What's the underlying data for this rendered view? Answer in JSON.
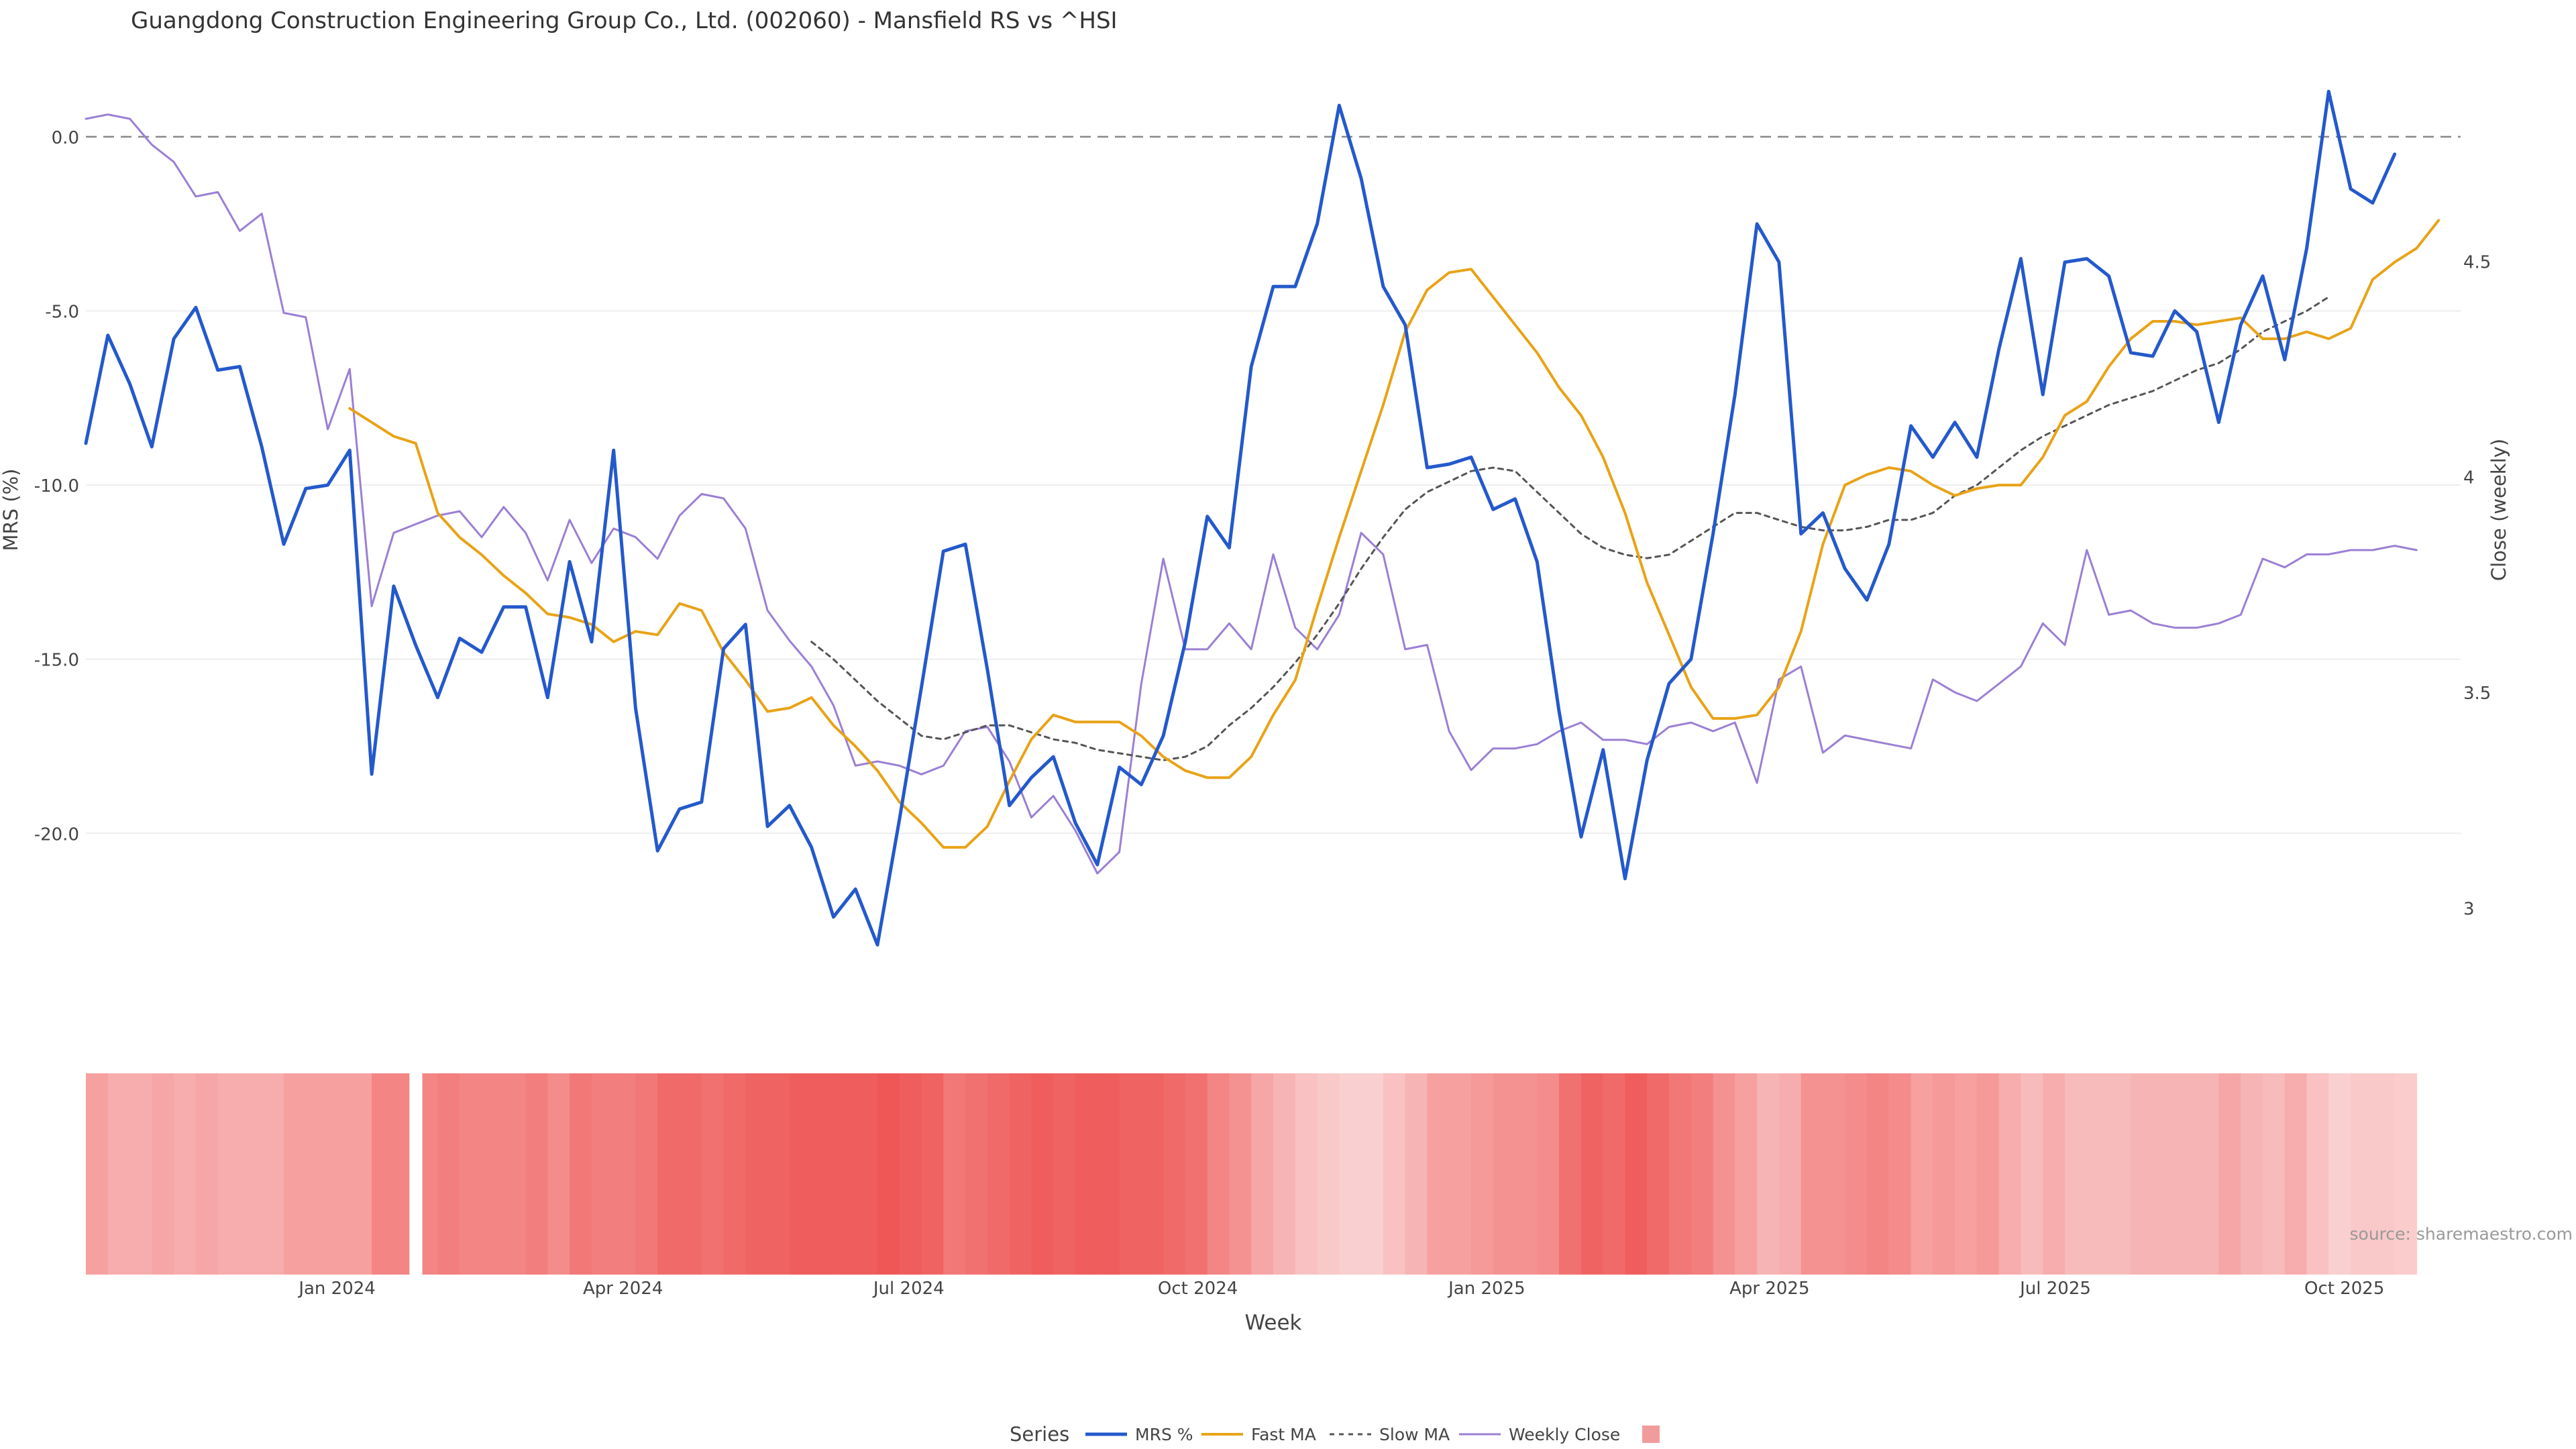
{
  "title": "Guangdong Construction Engineering Group Co., Ltd. (002060) - Mansfield RS vs ^HSI",
  "source": "source: sharemaestro.com",
  "colors": {
    "mrs": "#2459cc",
    "fast_ma": "#e8a317",
    "slow_ma": "#555555",
    "weekly_close": "#9b7fd4",
    "zero_line": "#888888",
    "heat_low": "#fbdcdc",
    "heat_high": "#ef5656"
  },
  "chart_data": {
    "type": "line",
    "xlabel": "Week",
    "ylabel_left": "MRS (%)",
    "ylabel_right": "Close (weekly)",
    "x_range": [
      "2023-10-13",
      "2025-11-07"
    ],
    "ylim_left": [
      -24,
      2
    ],
    "ylim_right": [
      2.85,
      4.95
    ],
    "yticks_left": [
      0,
      -5,
      -10,
      -15,
      -20
    ],
    "yticks_left_labels": [
      "0.0",
      "-5.0",
      "-10.0",
      "-15.0",
      "-20.0"
    ],
    "yticks_right": [
      4.5,
      4,
      3.5,
      3
    ],
    "yticks_right_labels": [
      "4.5",
      "4",
      "3.5",
      "3"
    ],
    "x_ticks": [
      {
        "date": "2024-01-01",
        "label": "Jan 2024"
      },
      {
        "date": "2024-04-01",
        "label": "Apr 2024"
      },
      {
        "date": "2024-07-01",
        "label": "Jul 2024"
      },
      {
        "date": "2024-10-01",
        "label": "Oct 2024"
      },
      {
        "date": "2025-01-01",
        "label": "Jan 2025"
      },
      {
        "date": "2025-04-01",
        "label": "Apr 2025"
      },
      {
        "date": "2025-07-01",
        "label": "Jul 2025"
      },
      {
        "date": "2025-10-01",
        "label": "Oct 2025"
      }
    ],
    "zero_line": 0,
    "grid": true,
    "legend": {
      "title": "Series",
      "position": "bottom-center",
      "items": [
        "MRS %",
        "Fast MA",
        "Slow MA",
        "Weekly Close",
        ""
      ]
    },
    "series": [
      {
        "name": "MRS %",
        "start_date": "2023-10-13",
        "values": [
          -8.8,
          -5.7,
          -7.1,
          -8.9,
          -5.8,
          -4.9,
          -6.7,
          -6.6,
          -8.9,
          -11.7,
          -10.1,
          -10.0,
          -9.0,
          -18.3,
          -12.9,
          -14.6,
          -16.1,
          -14.4,
          -14.8,
          -13.5,
          -13.5,
          -16.1,
          -12.2,
          -14.5,
          -9.0,
          -16.4,
          -20.5,
          -19.3,
          -19.1,
          -14.7,
          -14.0,
          -19.8,
          -19.2,
          -20.4,
          -22.4,
          -21.6,
          -23.2,
          -19.6,
          -15.8,
          -11.9,
          -11.7,
          -15.3,
          -19.2,
          -18.4,
          -17.8,
          -19.7,
          -20.9,
          -18.1,
          -18.6,
          -17.2,
          -14.5,
          -10.9,
          -11.8,
          -6.6,
          -4.3,
          -4.3,
          -2.5,
          0.9,
          -1.2,
          -4.3,
          -5.4,
          -9.5,
          -9.4,
          -9.2,
          -10.7,
          -10.4,
          -12.2,
          -16.5,
          -20.1,
          -17.6,
          -21.3,
          -17.9,
          -15.7,
          -15.0,
          -11.4,
          -7.4,
          -2.5,
          -3.6,
          -11.4,
          -10.8,
          -12.4,
          -13.3,
          -11.7,
          -8.3,
          -9.2,
          -8.2,
          -9.2,
          -6.1,
          -3.5,
          -7.4,
          -3.6,
          -3.5,
          -4.0,
          -6.2,
          -6.3,
          -5.0,
          -5.6,
          -8.2,
          -5.4,
          -4.0,
          -6.4,
          -3.2,
          1.3,
          -1.5,
          -1.9,
          -0.5
        ]
      },
      {
        "name": "Fast MA",
        "start_date": "2024-01-05",
        "values": [
          -7.8,
          -8.2,
          -8.6,
          -8.8,
          -10.8,
          -11.5,
          -12.0,
          -12.6,
          -13.1,
          -13.7,
          -13.8,
          -14.0,
          -14.5,
          -14.2,
          -14.3,
          -13.4,
          -13.6,
          -14.8,
          -15.6,
          -16.5,
          -16.4,
          -16.1,
          -16.9,
          -17.5,
          -18.2,
          -19.1,
          -19.7,
          -20.4,
          -20.4,
          -19.8,
          -18.5,
          -17.3,
          -16.6,
          -16.8,
          -16.8,
          -16.8,
          -17.2,
          -17.8,
          -18.2,
          -18.4,
          -18.4,
          -17.8,
          -16.6,
          -15.6,
          -13.5,
          -11.5,
          -9.6,
          -7.7,
          -5.6,
          -4.4,
          -3.9,
          -3.8,
          -4.6,
          -5.4,
          -6.2,
          -7.2,
          -8.0,
          -9.2,
          -10.8,
          -12.8,
          -14.3,
          -15.8,
          -16.7,
          -16.7,
          -16.6,
          -15.8,
          -14.2,
          -11.7,
          -10.0,
          -9.7,
          -9.5,
          -9.6,
          -10.0,
          -10.3,
          -10.1,
          -10.0,
          -10.0,
          -9.2,
          -8.0,
          -7.6,
          -6.6,
          -5.8,
          -5.3,
          -5.3,
          -5.4,
          -5.3,
          -5.2,
          -5.8,
          -5.8,
          -5.6,
          -5.8,
          -5.5,
          -4.1,
          -3.6,
          -3.2,
          -2.4
        ]
      },
      {
        "name": "Slow MA",
        "start_date": "2024-05-31",
        "values": [
          -14.5,
          -15.0,
          -15.6,
          -16.2,
          -16.7,
          -17.2,
          -17.3,
          -17.1,
          -16.9,
          -16.9,
          -17.1,
          -17.3,
          -17.4,
          -17.6,
          -17.7,
          -17.8,
          -17.9,
          -17.8,
          -17.5,
          -16.9,
          -16.4,
          -15.8,
          -15.1,
          -14.3,
          -13.4,
          -12.4,
          -11.5,
          -10.7,
          -10.2,
          -9.9,
          -9.6,
          -9.5,
          -9.6,
          -10.2,
          -10.8,
          -11.4,
          -11.8,
          -12.0,
          -12.1,
          -12.0,
          -11.6,
          -11.2,
          -10.8,
          -10.8,
          -11.0,
          -11.2,
          -11.3,
          -11.3,
          -11.2,
          -11.0,
          -11.0,
          -10.8,
          -10.3,
          -10.0,
          -9.5,
          -9.0,
          -8.6,
          -8.3,
          -8.0,
          -7.7,
          -7.5,
          -7.3,
          -7.0,
          -6.7,
          -6.5,
          -6.1,
          -5.6,
          -5.3,
          -5.0,
          -4.6
        ]
      },
      {
        "name": "Weekly Close",
        "axis": "right",
        "start_date": "2023-10-13",
        "values": [
          4.83,
          4.84,
          4.83,
          4.77,
          4.73,
          4.65,
          4.66,
          4.57,
          4.61,
          4.38,
          4.37,
          4.11,
          4.25,
          3.7,
          3.87,
          3.89,
          3.91,
          3.92,
          3.86,
          3.93,
          3.87,
          3.76,
          3.9,
          3.8,
          3.88,
          3.86,
          3.81,
          3.91,
          3.96,
          3.95,
          3.88,
          3.69,
          3.62,
          3.56,
          3.47,
          3.33,
          3.34,
          3.33,
          3.31,
          3.33,
          3.41,
          3.42,
          3.34,
          3.21,
          3.26,
          3.18,
          3.08,
          3.13,
          3.52,
          3.81,
          3.6,
          3.6,
          3.66,
          3.6,
          3.82,
          3.65,
          3.6,
          3.68,
          3.87,
          3.82,
          3.6,
          3.61,
          3.41,
          3.32,
          3.37,
          3.37,
          3.38,
          3.41,
          3.43,
          3.39,
          3.39,
          3.38,
          3.42,
          3.43,
          3.41,
          3.43,
          3.29,
          3.53,
          3.56,
          3.36,
          3.4,
          3.39,
          3.38,
          3.37,
          3.53,
          3.5,
          3.48,
          3.52,
          3.56,
          3.66,
          3.61,
          3.83,
          3.68,
          3.69,
          3.66,
          3.65,
          3.65,
          3.66,
          3.68,
          3.81,
          3.79,
          3.82,
          3.82,
          3.83,
          3.83,
          3.84,
          3.83
        ]
      }
    ],
    "heatmap_strip": {
      "start_date": "2023-10-13",
      "gap_after_index": 14,
      "intensity": [
        0.45,
        0.35,
        0.35,
        0.4,
        0.35,
        0.4,
        0.35,
        0.35,
        0.35,
        0.45,
        0.45,
        0.45,
        0.45,
        0.65,
        0.65,
        0.65,
        0.7,
        0.65,
        0.65,
        0.65,
        0.7,
        0.6,
        0.75,
        0.7,
        0.7,
        0.75,
        0.85,
        0.85,
        0.8,
        0.85,
        0.9,
        0.9,
        0.95,
        0.95,
        0.95,
        0.95,
        1.0,
        0.95,
        0.9,
        0.75,
        0.8,
        0.85,
        0.9,
        0.95,
        0.9,
        0.95,
        0.95,
        0.9,
        0.9,
        0.85,
        0.8,
        0.65,
        0.55,
        0.4,
        0.3,
        0.2,
        0.15,
        0.1,
        0.1,
        0.2,
        0.3,
        0.45,
        0.45,
        0.5,
        0.55,
        0.55,
        0.6,
        0.8,
        0.9,
        0.85,
        0.95,
        0.85,
        0.75,
        0.7,
        0.55,
        0.45,
        0.3,
        0.35,
        0.55,
        0.55,
        0.6,
        0.65,
        0.6,
        0.45,
        0.5,
        0.45,
        0.5,
        0.35,
        0.25,
        0.35,
        0.25,
        0.25,
        0.25,
        0.3,
        0.3,
        0.3,
        0.3,
        0.4,
        0.3,
        0.25,
        0.35,
        0.2,
        0.1,
        0.15,
        0.15,
        0.12
      ]
    }
  }
}
